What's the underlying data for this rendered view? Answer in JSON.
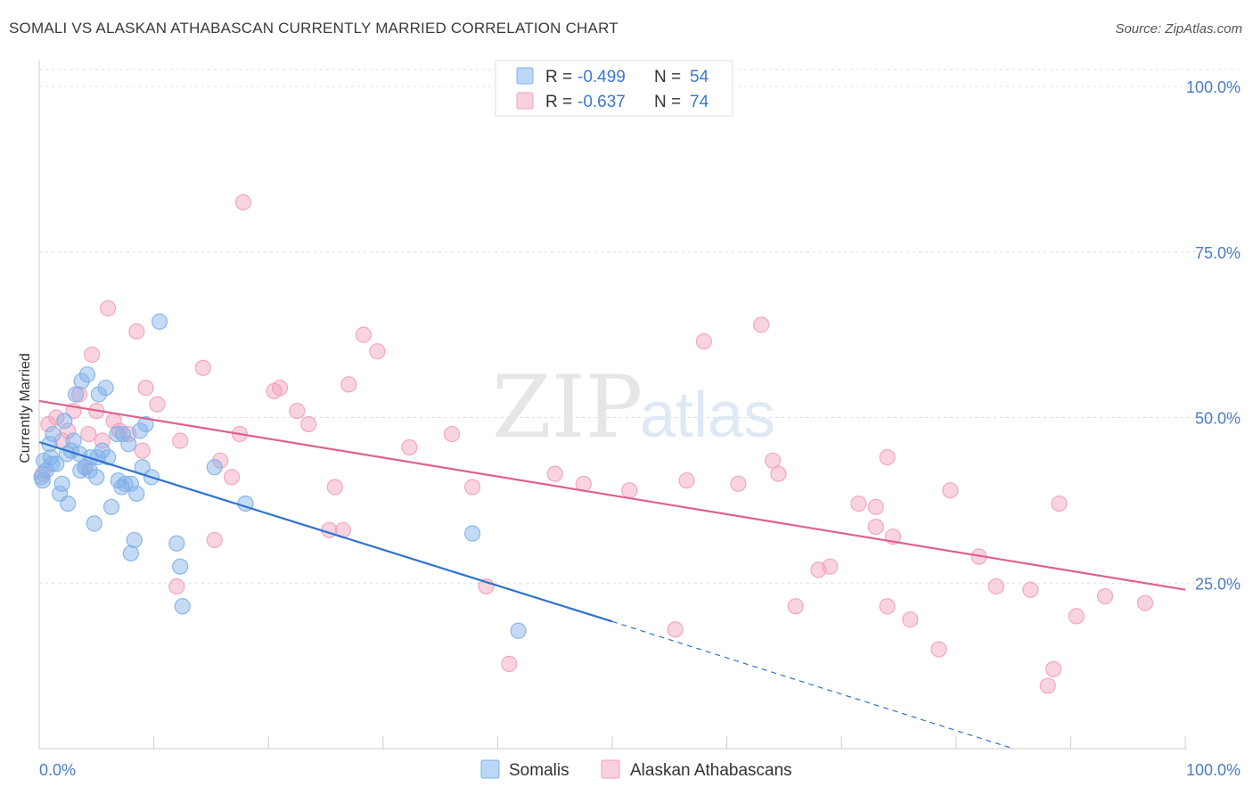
{
  "title": "SOMALI VS ALASKAN ATHABASCAN CURRENTLY MARRIED CORRELATION CHART",
  "source": "Source: ZipAtlas.com",
  "watermark": {
    "zip": "ZIP",
    "atlas": "atlas"
  },
  "colors": {
    "somali": "#7fb0e8",
    "somali_line": "#2f72d0",
    "athabascan": "#f2a0ba",
    "athabascan_line": "#e0608f",
    "tick": "#4a7cc8",
    "grid": "#dddddd"
  },
  "chart_data": {
    "type": "scatter",
    "ylabel": "Currently Married",
    "xlim": [
      0,
      100
    ],
    "ylim": [
      0,
      105
    ],
    "x_tick_labels": [
      "0.0%",
      "100.0%"
    ],
    "y_ticks": [
      25,
      50,
      75,
      100
    ],
    "y_tick_labels": [
      "25.0%",
      "50.0%",
      "75.0%",
      "100.0%"
    ],
    "grid": "horizontal dashed",
    "legend": {
      "position": "top-center",
      "entries": [
        {
          "r_label": "R =",
          "r_value": "-0.499",
          "n_label": "N =",
          "n_value": "54"
        },
        {
          "r_label": "R =",
          "r_value": "-0.637",
          "n_label": "N =",
          "n_value": "74"
        }
      ]
    },
    "series": [
      {
        "name": "Somalis",
        "trend": {
          "x": [
            0,
            50
          ],
          "y": [
            46.3,
            19.2
          ],
          "dashed_extension_to": [
            85,
            0
          ]
        },
        "points": [
          [
            0.2,
            41.0
          ],
          [
            0.4,
            43.5
          ],
          [
            0.6,
            42.0
          ],
          [
            1.0,
            44.0
          ],
          [
            1.2,
            47.5
          ],
          [
            1.5,
            43.0
          ],
          [
            1.8,
            38.5
          ],
          [
            2.0,
            40.0
          ],
          [
            2.2,
            49.5
          ],
          [
            2.5,
            37.0
          ],
          [
            2.8,
            45.0
          ],
          [
            3.0,
            46.5
          ],
          [
            3.2,
            53.5
          ],
          [
            3.5,
            44.5
          ],
          [
            3.7,
            55.5
          ],
          [
            4.0,
            42.5
          ],
          [
            4.2,
            56.5
          ],
          [
            4.5,
            44.0
          ],
          [
            4.8,
            34.0
          ],
          [
            5.0,
            41.0
          ],
          [
            5.2,
            53.5
          ],
          [
            5.5,
            45.0
          ],
          [
            5.8,
            54.5
          ],
          [
            6.0,
            44.0
          ],
          [
            6.3,
            36.5
          ],
          [
            6.8,
            47.5
          ],
          [
            7.2,
            39.5
          ],
          [
            7.5,
            40.0
          ],
          [
            7.8,
            46.0
          ],
          [
            8.0,
            40.0
          ],
          [
            8.3,
            31.5
          ],
          [
            8.5,
            38.5
          ],
          [
            8.8,
            48.0
          ],
          [
            9.0,
            42.5
          ],
          [
            9.3,
            49.0
          ],
          [
            9.8,
            41.0
          ],
          [
            10.5,
            64.5
          ],
          [
            12.0,
            31.0
          ],
          [
            12.3,
            27.5
          ],
          [
            12.5,
            21.5
          ],
          [
            15.3,
            42.5
          ],
          [
            18.0,
            37.0
          ],
          [
            8.0,
            29.5
          ],
          [
            1.1,
            43.0
          ],
          [
            3.6,
            42.0
          ],
          [
            5.1,
            44.0
          ],
          [
            6.9,
            40.5
          ],
          [
            0.9,
            46.0
          ],
          [
            2.4,
            44.5
          ],
          [
            4.4,
            42.0
          ],
          [
            7.3,
            47.5
          ],
          [
            37.8,
            32.5
          ],
          [
            41.8,
            17.8
          ],
          [
            0.3,
            40.5
          ]
        ]
      },
      {
        "name": "Alaskan Athabascans",
        "trend": {
          "x": [
            0,
            100
          ],
          "y": [
            52.5,
            24.0
          ]
        },
        "points": [
          [
            0.3,
            41.5
          ],
          [
            0.8,
            49.0
          ],
          [
            1.5,
            50.0
          ],
          [
            2.0,
            46.5
          ],
          [
            2.5,
            48.0
          ],
          [
            3.0,
            51.0
          ],
          [
            3.5,
            53.5
          ],
          [
            4.0,
            42.5
          ],
          [
            4.3,
            47.5
          ],
          [
            4.6,
            59.5
          ],
          [
            5.0,
            51.0
          ],
          [
            5.5,
            46.5
          ],
          [
            6.0,
            66.5
          ],
          [
            6.5,
            49.5
          ],
          [
            7.0,
            48.0
          ],
          [
            7.8,
            47.5
          ],
          [
            8.5,
            63.0
          ],
          [
            9.0,
            45.0
          ],
          [
            9.3,
            54.5
          ],
          [
            10.3,
            52.0
          ],
          [
            12.0,
            24.5
          ],
          [
            12.3,
            46.5
          ],
          [
            14.3,
            57.5
          ],
          [
            15.3,
            31.5
          ],
          [
            15.8,
            43.5
          ],
          [
            16.8,
            41.0
          ],
          [
            17.5,
            47.5
          ],
          [
            17.8,
            82.5
          ],
          [
            20.5,
            54.0
          ],
          [
            21.0,
            54.5
          ],
          [
            22.5,
            51.0
          ],
          [
            23.5,
            49.0
          ],
          [
            25.3,
            33.0
          ],
          [
            25.8,
            39.5
          ],
          [
            26.5,
            33.0
          ],
          [
            27.0,
            55.0
          ],
          [
            28.3,
            62.5
          ],
          [
            29.5,
            60.0
          ],
          [
            32.3,
            45.5
          ],
          [
            36.0,
            47.5
          ],
          [
            37.8,
            39.5
          ],
          [
            39.0,
            24.5
          ],
          [
            41.0,
            12.8
          ],
          [
            45.0,
            41.5
          ],
          [
            47.5,
            40.0
          ],
          [
            51.5,
            39.0
          ],
          [
            55.5,
            18.0
          ],
          [
            56.5,
            40.5
          ],
          [
            61.0,
            40.0
          ],
          [
            66.0,
            21.5
          ],
          [
            68.0,
            27.0
          ],
          [
            69.0,
            27.5
          ],
          [
            71.5,
            37.0
          ],
          [
            73.0,
            33.5
          ],
          [
            74.0,
            21.5
          ],
          [
            74.5,
            32.0
          ],
          [
            76.0,
            19.5
          ],
          [
            78.5,
            15.0
          ],
          [
            79.5,
            39.0
          ],
          [
            82.0,
            29.0
          ],
          [
            83.5,
            24.5
          ],
          [
            86.5,
            24.0
          ],
          [
            88.0,
            9.5
          ],
          [
            88.5,
            12.0
          ],
          [
            89.0,
            37.0
          ],
          [
            90.5,
            20.0
          ],
          [
            93.0,
            23.0
          ],
          [
            96.5,
            22.0
          ],
          [
            64.5,
            41.5
          ],
          [
            64.0,
            43.5
          ],
          [
            74.0,
            44.0
          ],
          [
            63.0,
            64.0
          ],
          [
            58.0,
            61.5
          ],
          [
            73.0,
            36.5
          ]
        ]
      }
    ]
  },
  "bottom_legend": [
    {
      "label": "Somalis"
    },
    {
      "label": "Alaskan Athabascans"
    }
  ]
}
